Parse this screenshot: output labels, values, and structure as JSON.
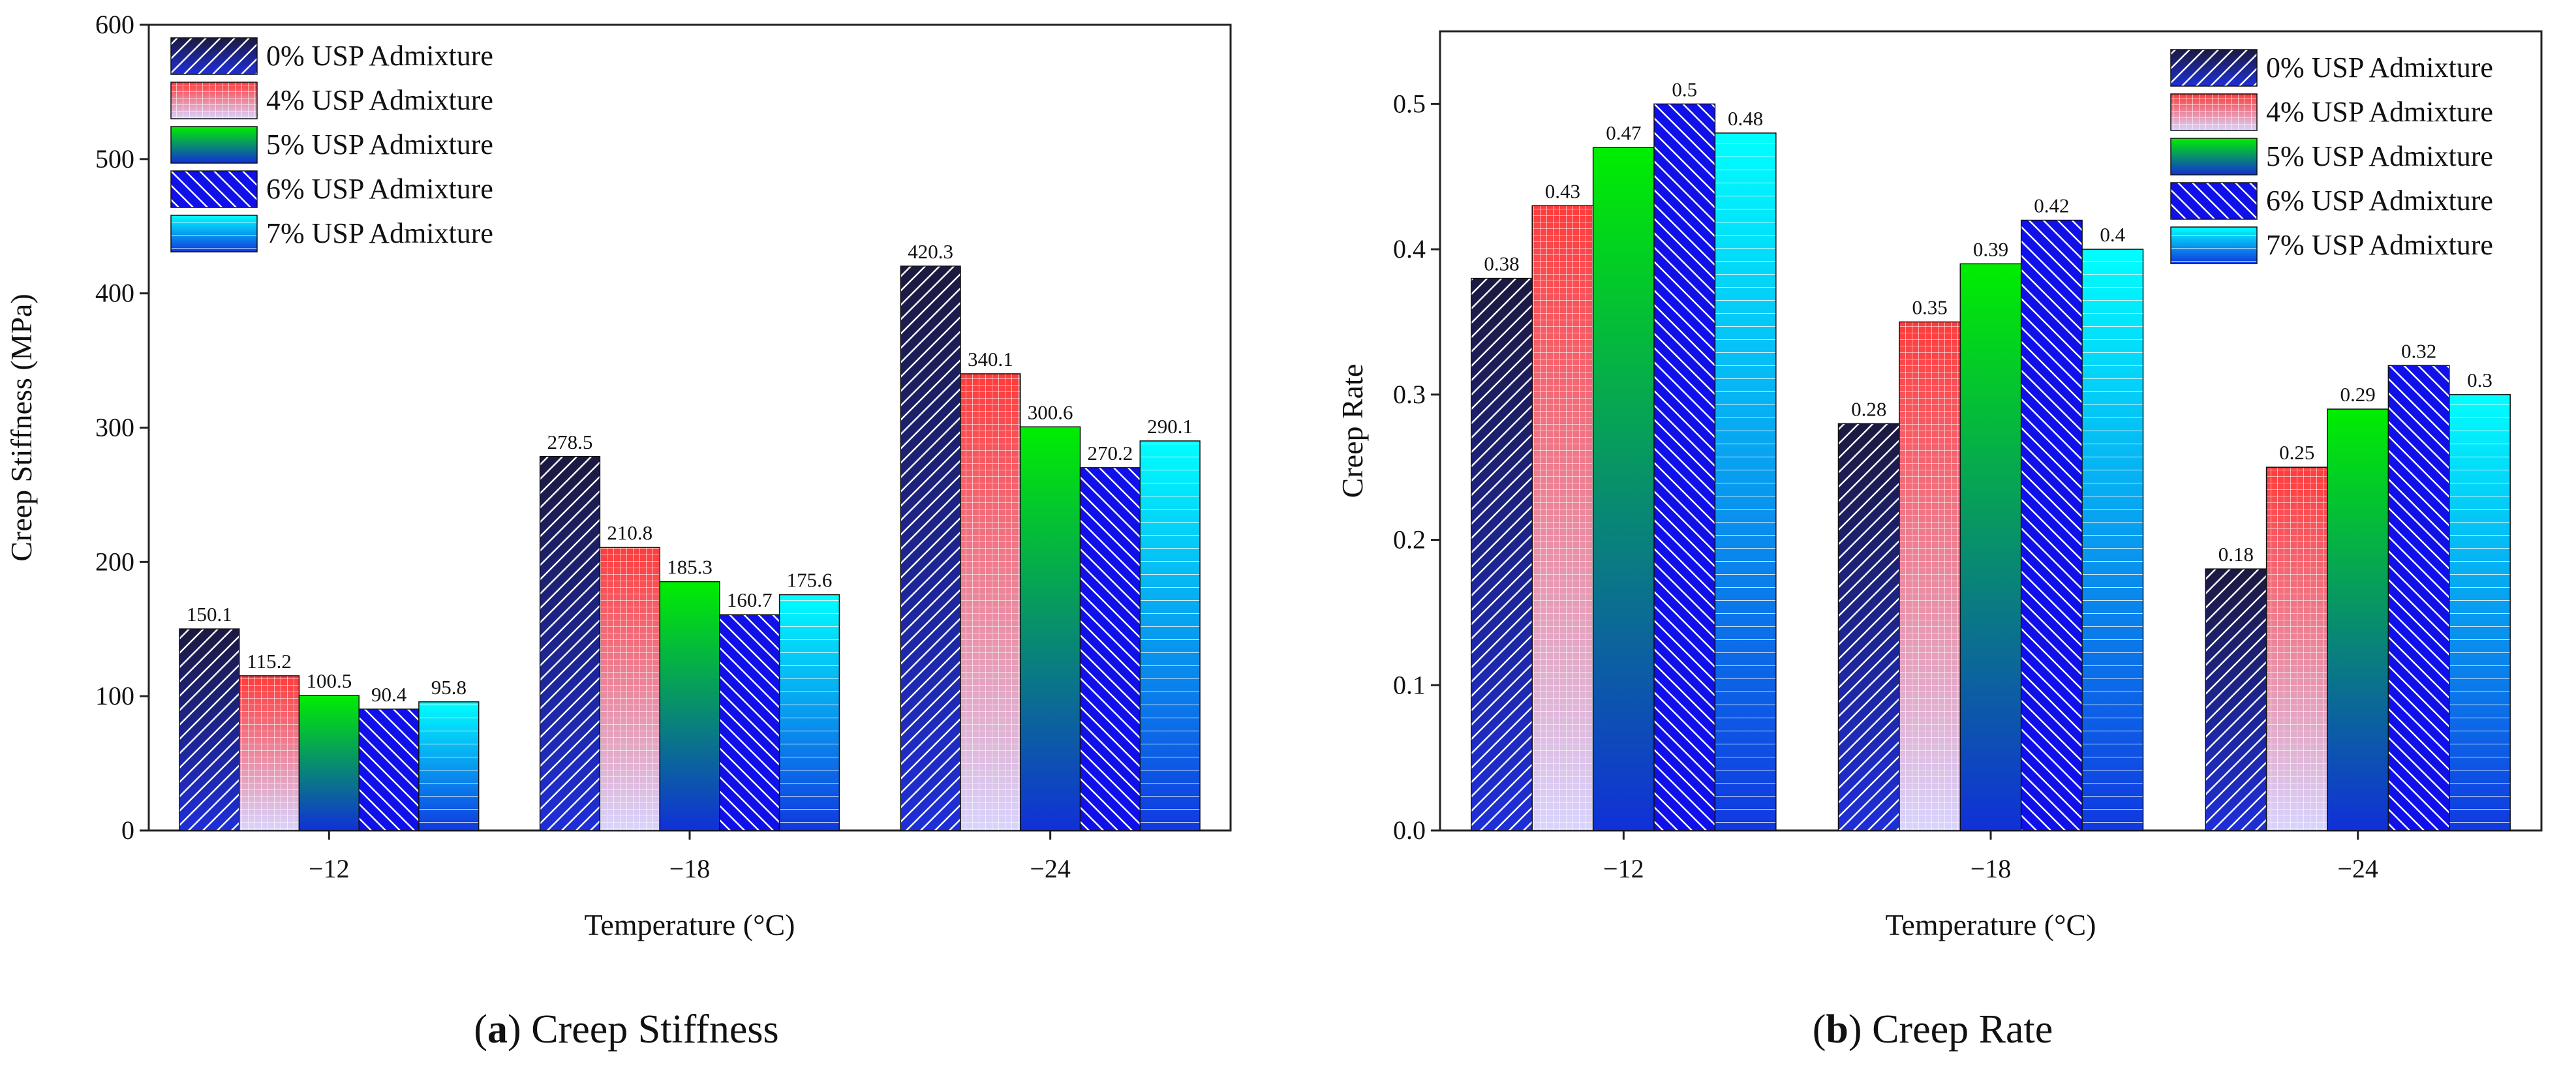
{
  "chart_data": [
    {
      "type": "bar",
      "id": "a",
      "caption_letter": "a",
      "caption_text": "Creep Stiffness",
      "xlabel": "Temperature (°C)",
      "ylabel": "Creep Stiffness (MPa)",
      "categories": [
        "−12",
        "−18",
        "−24"
      ],
      "ylim": [
        0,
        600
      ],
      "yticks": [
        0,
        100,
        200,
        300,
        400,
        500,
        600
      ],
      "ytick_labels": [
        "0",
        "100",
        "200",
        "300",
        "400",
        "500",
        "600"
      ],
      "legend_position": "top-left",
      "series": [
        {
          "name": "0% USP Admixture",
          "values": [
            150.1,
            278.5,
            420.3
          ],
          "labels": [
            "150.1",
            "278.5",
            "420.3"
          ]
        },
        {
          "name": "4% USP Admixture",
          "values": [
            115.2,
            210.8,
            340.1
          ],
          "labels": [
            "115.2",
            "210.8",
            "340.1"
          ]
        },
        {
          "name": "5% USP Admixture",
          "values": [
            100.5,
            185.3,
            300.6
          ],
          "labels": [
            "100.5",
            "185.3",
            "300.6"
          ]
        },
        {
          "name": "6% USP Admixture",
          "values": [
            90.4,
            160.7,
            270.2
          ],
          "labels": [
            "90.4",
            "160.7",
            "270.2"
          ]
        },
        {
          "name": "7% USP Admixture",
          "values": [
            95.8,
            175.6,
            290.1
          ],
          "labels": [
            "95.8",
            "175.6",
            "290.1"
          ]
        }
      ]
    },
    {
      "type": "bar",
      "id": "b",
      "caption_letter": "b",
      "caption_text": "Creep Rate",
      "xlabel": "Temperature (°C)",
      "ylabel": "Creep Rate",
      "categories": [
        "−12",
        "−18",
        "−24"
      ],
      "ylim": [
        0,
        0.55
      ],
      "yticks": [
        0,
        0.1,
        0.2,
        0.3,
        0.4,
        0.5
      ],
      "ytick_labels": [
        "0.0",
        "0.1",
        "0.2",
        "0.3",
        "0.4",
        "0.5"
      ],
      "legend_position": "top-right",
      "series": [
        {
          "name": "0% USP Admixture",
          "values": [
            0.38,
            0.28,
            0.18
          ],
          "labels": [
            "0.38",
            "0.28",
            "0.18"
          ]
        },
        {
          "name": "4% USP Admixture",
          "values": [
            0.43,
            0.35,
            0.25
          ],
          "labels": [
            "0.43",
            "0.35",
            "0.25"
          ]
        },
        {
          "name": "5% USP Admixture",
          "values": [
            0.47,
            0.39,
            0.29
          ],
          "labels": [
            "0.47",
            "0.39",
            "0.29"
          ]
        },
        {
          "name": "6% USP Admixture",
          "values": [
            0.5,
            0.42,
            0.32
          ],
          "labels": [
            "0.5",
            "0.42",
            "0.32"
          ]
        },
        {
          "name": "7% USP Admixture",
          "values": [
            0.48,
            0.4,
            0.3
          ],
          "labels": [
            "0.48",
            "0.4",
            "0.3"
          ]
        }
      ]
    }
  ],
  "series_styles": [
    {
      "top_color": "#1c1a40",
      "bottom_color": "#1e2fd8",
      "pattern": "diag-up",
      "pattern_color": "#ffffff"
    },
    {
      "top_color": "#ff3b3b",
      "bottom_color": "#d8d4ff",
      "pattern": "grid",
      "pattern_color": "#ffffff"
    },
    {
      "top_color": "#00ee00",
      "bottom_color": "#1030d8",
      "pattern": "none",
      "pattern_color": "#ffffff"
    },
    {
      "top_color": "#1010e8",
      "bottom_color": "#1010e8",
      "pattern": "diag-down",
      "pattern_color": "#ffffff"
    },
    {
      "top_color": "#00ffff",
      "bottom_color": "#1038e0",
      "pattern": "hlines",
      "pattern_color": "#ffffff"
    }
  ]
}
